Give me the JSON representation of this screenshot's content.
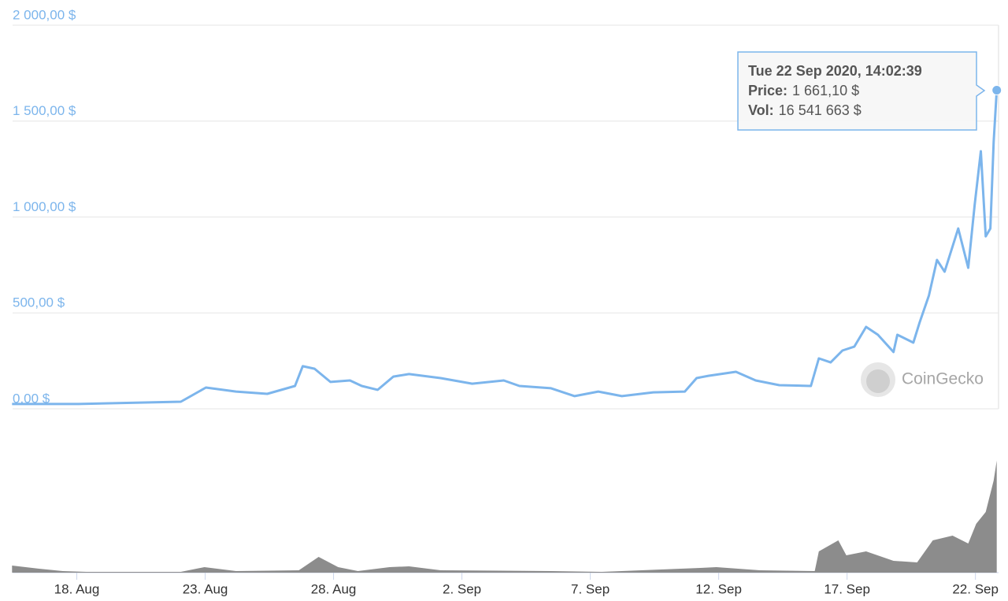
{
  "chart_data": [
    {
      "type": "line",
      "x": [
        -2.52,
        0.06,
        4.05,
        5.03,
        6.2,
        7.42,
        8.5,
        8.8,
        9.26,
        9.88,
        10.64,
        11.1,
        11.72,
        12.33,
        12.94,
        14.17,
        15.4,
        16.63,
        17.24,
        18.47,
        19.39,
        20.31,
        21.23,
        22.45,
        23.68,
        24.14,
        24.6,
        25.67,
        26.44,
        27.36,
        28.59,
        28.9,
        29.36,
        29.82,
        30.28,
        30.74,
        31.2,
        31.81,
        31.96,
        32.58,
        32.82,
        33.19,
        33.5,
        33.8,
        34.33,
        34.72,
        34.97,
        35.21,
        35.4,
        35.58,
        35.71,
        35.83
      ],
      "series": [
        {
          "name": "Price",
          "color": "#7cb5ec",
          "values": [
            25,
            25,
            37,
            111,
            90,
            78,
            119,
            222,
            209,
            140,
            148,
            119,
            99,
            168,
            181,
            160,
            131,
            148,
            119,
            107,
            66,
            90,
            66,
            86,
            90,
            160,
            172,
            193,
            148,
            123,
            119,
            263,
            242,
            304,
            324,
            427,
            386,
            296,
            386,
            345,
            448,
            591,
            776,
            715,
            940,
            735,
            1064,
            1343,
            899,
            940,
            1392,
            1661.1
          ]
        }
      ],
      "xlim": [
        -2.5,
        35.9
      ],
      "ylim": [
        0,
        2000
      ],
      "yticks": [
        {
          "value": 0,
          "label": "0,00 $"
        },
        {
          "value": 500,
          "label": "500,00 $"
        },
        {
          "value": 1000,
          "label": "1 000,00 $"
        },
        {
          "value": 1500,
          "label": "1 500,00 $"
        },
        {
          "value": 2000,
          "label": "2 000,00 $"
        }
      ],
      "grid": true,
      "tooltip": {
        "title": "Tue 22 Sep 2020, 14:02:39",
        "price_label": "Price:",
        "price": "1 661,10 $",
        "vol_label": "Vol:",
        "vol": "16 541 663 $"
      },
      "watermark": "CoinGecko"
    },
    {
      "type": "area",
      "x": [
        -2.52,
        -1.47,
        -0.55,
        0.37,
        4.05,
        4.97,
        6.2,
        8.65,
        9.42,
        10.18,
        10.95,
        12.18,
        12.94,
        14.17,
        18.47,
        20.46,
        24.29,
        24.91,
        26.6,
        28.74,
        28.9,
        29.66,
        29.97,
        30.74,
        31.81,
        32.73,
        33.34,
        34.11,
        34.72,
        35.03,
        35.4,
        35.71,
        35.83
      ],
      "series": [
        {
          "name": "Vol",
          "color": "#8c8c8c",
          "values": [
            1050000,
            580000,
            230000,
            120000,
            120000,
            810000,
            230000,
            350000,
            2330000,
            810000,
            230000,
            810000,
            930000,
            350000,
            230000,
            120000,
            700000,
            810000,
            350000,
            230000,
            3140000,
            4770000,
            2560000,
            3140000,
            1740000,
            1510000,
            4770000,
            5470000,
            4300000,
            7210000,
            8950000,
            13600000,
            16541663
          ]
        }
      ],
      "xlim": [
        -2.5,
        35.9
      ],
      "ylim": [
        0,
        20000000
      ],
      "xticks": [
        {
          "value": 0,
          "label": "18. Aug"
        },
        {
          "value": 5,
          "label": "23. Aug"
        },
        {
          "value": 10,
          "label": "28. Aug"
        },
        {
          "value": 15,
          "label": "2. Sep"
        },
        {
          "value": 20,
          "label": "7. Sep"
        },
        {
          "value": 25,
          "label": "12. Sep"
        },
        {
          "value": 30,
          "label": "17. Sep"
        },
        {
          "value": 35,
          "label": "22. Sep"
        }
      ]
    }
  ]
}
